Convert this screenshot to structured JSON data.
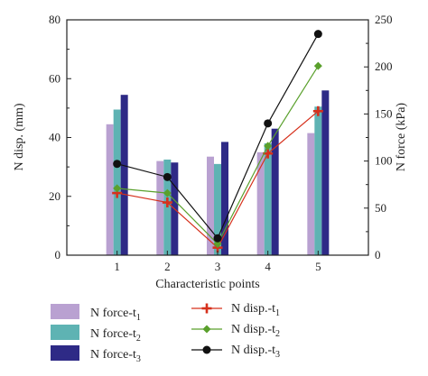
{
  "chart_data": {
    "type": "bar",
    "xlabel": "Characteristic points",
    "ylabel_left": "N disp. (mm)",
    "ylabel_right": "N force (kPa)",
    "categories": [
      "1",
      "2",
      "3",
      "4",
      "5"
    ],
    "ylim_left": [
      0,
      80
    ],
    "ylim_right": [
      0,
      250
    ],
    "yticks_left": [
      "0",
      "20",
      "40",
      "60",
      "80"
    ],
    "yticks_right": [
      "0",
      "50",
      "100",
      "150",
      "200",
      "250"
    ],
    "bar_series": [
      {
        "name": "N force-t",
        "subscript": "1",
        "color": "#b9a1d1",
        "axis": "left",
        "values": [
          44.5,
          32,
          33.5,
          35,
          41.5
        ]
      },
      {
        "name": "N force-t",
        "subscript": "2",
        "color": "#5eb3b3",
        "axis": "left",
        "values": [
          49.5,
          32.5,
          31,
          38,
          50.5
        ]
      },
      {
        "name": "N force-t",
        "subscript": "3",
        "color": "#2e2a86",
        "axis": "left",
        "values": [
          54.5,
          31.5,
          38.5,
          43,
          56
        ]
      }
    ],
    "line_series": [
      {
        "name": "N disp.-t",
        "subscript": "1",
        "color": "#d6301c",
        "marker": "plus",
        "axis": "right",
        "values": [
          66,
          56,
          8,
          108,
          153
        ]
      },
      {
        "name": "N disp.-t",
        "subscript": "2",
        "color": "#5aa02c",
        "marker": "diamond",
        "axis": "right",
        "values": [
          71,
          66,
          12,
          116,
          201
        ]
      },
      {
        "name": "N disp.-t",
        "subscript": "3",
        "color": "#111111",
        "marker": "circle",
        "axis": "right",
        "values": [
          97,
          83,
          18,
          140,
          235
        ]
      }
    ],
    "legend_position": "bottom"
  }
}
